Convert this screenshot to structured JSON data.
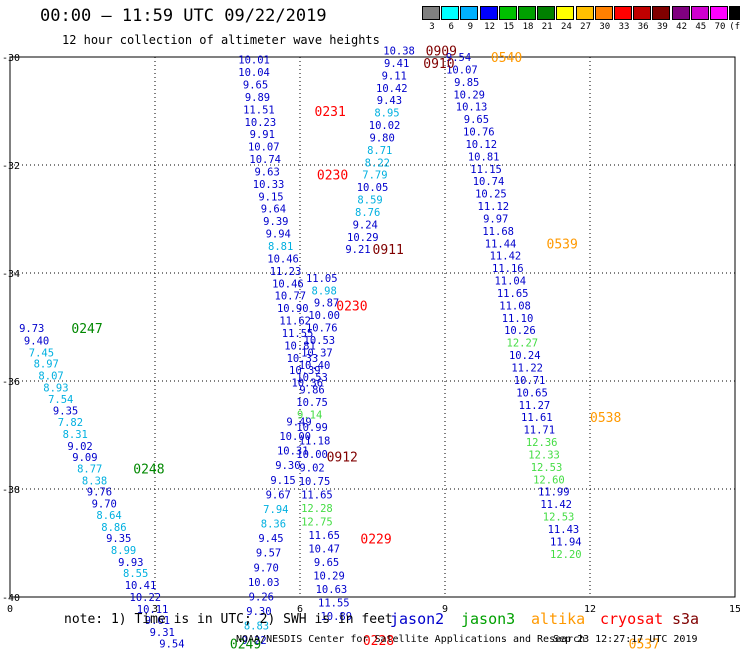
{
  "header": {
    "title": "00:00 – 11:59 UTC 09/22/2019",
    "subtitle": "12 hour collection of altimeter wave heights"
  },
  "color_scale": {
    "labels": [
      "3",
      "6",
      "9",
      "12",
      "15",
      "18",
      "21",
      "24",
      "27",
      "30",
      "33",
      "36",
      "39",
      "42",
      "45",
      "70",
      "(ft)"
    ],
    "colors": [
      "#808080",
      "#00ffff",
      "#00b0ff",
      "#0000ff",
      "#00c000",
      "#00a000",
      "#008000",
      "#ffff00",
      "#ffc000",
      "#ff8000",
      "#ff0000",
      "#c00000",
      "#800000",
      "#800080",
      "#d000d0",
      "#ff00ff",
      "#000000"
    ]
  },
  "footer": {
    "note": "note: 1) Time is in UTC; 2) SWH is in feet",
    "satellites": [
      {
        "name": "jason2",
        "color": "#0000cc"
      },
      {
        "name": "jason3",
        "color": "#00a000"
      },
      {
        "name": "altika",
        "color": "#ff9900"
      },
      {
        "name": "cryosat",
        "color": "#ff0000"
      },
      {
        "name": "s3a",
        "color": "#800000"
      }
    ],
    "credit": "NOAA/NESDIS Center for Satellite Applications and Research",
    "timestamp": "Sep 23 12:27:17 UTC 2019"
  },
  "chart_data": {
    "type": "scatter",
    "xlim": [
      0,
      15
    ],
    "ylim": [
      -40,
      -30
    ],
    "x_ticks": [
      0,
      3,
      6,
      9,
      12,
      15
    ],
    "y_ticks": [
      -30,
      -32,
      -34,
      -36,
      -38,
      -40
    ],
    "grid": true,
    "colors": {
      "b": "#0000cc",
      "c": "#00b0e0",
      "g": "#44dd44",
      "G": "#008800",
      "r": "#ff0000",
      "o": "#ff9900",
      "m": "#800000"
    },
    "points": [
      [
        0.45,
        -35.02,
        "9.73",
        "b"
      ],
      [
        0.55,
        -35.25,
        "9.40",
        "b"
      ],
      [
        0.65,
        -35.47,
        "7.45",
        "c"
      ],
      [
        0.75,
        -35.68,
        "8.97",
        "c"
      ],
      [
        0.85,
        -35.9,
        "8.07",
        "c"
      ],
      [
        0.95,
        -36.12,
        "8.93",
        "c"
      ],
      [
        1.05,
        -36.33,
        "7.54",
        "c"
      ],
      [
        1.15,
        -36.55,
        "9.35",
        "b"
      ],
      [
        1.25,
        -36.76,
        "7.82",
        "c"
      ],
      [
        1.35,
        -36.98,
        "8.31",
        "c"
      ],
      [
        1.45,
        -37.2,
        "9.02",
        "b"
      ],
      [
        1.55,
        -37.41,
        "9.09",
        "b"
      ],
      [
        1.65,
        -37.62,
        "8.77",
        "c"
      ],
      [
        1.75,
        -37.84,
        "8.38",
        "c"
      ],
      [
        1.85,
        -38.05,
        "9.76",
        "b"
      ],
      [
        1.95,
        -38.27,
        "9.70",
        "b"
      ],
      [
        2.05,
        -38.48,
        "8.64",
        "c"
      ],
      [
        2.15,
        -38.7,
        "8.86",
        "c"
      ],
      [
        2.25,
        -38.91,
        "9.35",
        "b"
      ],
      [
        2.35,
        -39.13,
        "8.99",
        "c"
      ],
      [
        2.5,
        -39.35,
        "9.93",
        "b"
      ],
      [
        2.6,
        -39.56,
        "8.55",
        "c"
      ],
      [
        2.7,
        -39.78,
        "10.41",
        "b"
      ],
      [
        2.8,
        -40.0,
        "10.22",
        "b"
      ],
      [
        2.95,
        -40.22,
        "10.11",
        "b"
      ],
      [
        3.05,
        -40.43,
        "9.61",
        "b"
      ],
      [
        3.15,
        -40.65,
        "9.31",
        "b"
      ],
      [
        3.35,
        -40.86,
        "9.54",
        "b"
      ],
      [
        5.05,
        -40.8,
        "9.22",
        "b"
      ],
      [
        5.1,
        -40.53,
        "8.83",
        "c"
      ],
      [
        5.15,
        -40.26,
        "9.30",
        "b"
      ],
      [
        5.2,
        -39.99,
        "9.26",
        "b"
      ],
      [
        5.25,
        -39.72,
        "10.03",
        "b"
      ],
      [
        5.3,
        -39.45,
        "9.70",
        "b"
      ],
      [
        5.35,
        -39.18,
        "9.57",
        "b"
      ],
      [
        5.4,
        -38.91,
        "9.45",
        "b"
      ],
      [
        5.45,
        -38.64,
        "8.36",
        "c"
      ],
      [
        5.5,
        -38.37,
        "7.94",
        "c"
      ],
      [
        5.55,
        -38.1,
        "9.67",
        "b"
      ],
      [
        5.65,
        -37.83,
        "9.15",
        "b"
      ],
      [
        5.75,
        -37.56,
        "9.30",
        "b"
      ],
      [
        5.85,
        -37.29,
        "10.31",
        "b"
      ],
      [
        5.9,
        -37.02,
        "10.00",
        "b"
      ],
      [
        5.98,
        -36.75,
        "9.49",
        "b"
      ],
      [
        5.05,
        -30.05,
        "10.01",
        "b"
      ],
      [
        5.05,
        -30.28,
        "10.04",
        "b"
      ],
      [
        5.08,
        -30.51,
        "9.65",
        "b"
      ],
      [
        5.12,
        -30.74,
        "9.89",
        "b"
      ],
      [
        5.15,
        -30.97,
        "11.51",
        "b"
      ],
      [
        5.18,
        -31.2,
        "10.23",
        "b"
      ],
      [
        5.22,
        -31.43,
        "9.91",
        "b"
      ],
      [
        5.25,
        -31.66,
        "10.07",
        "b"
      ],
      [
        5.28,
        -31.89,
        "10.74",
        "b"
      ],
      [
        5.32,
        -32.12,
        "9.63",
        "b"
      ],
      [
        5.35,
        -32.35,
        "10.33",
        "b"
      ],
      [
        5.4,
        -32.58,
        "9.15",
        "b"
      ],
      [
        5.45,
        -32.81,
        "9.64",
        "b"
      ],
      [
        5.5,
        -33.04,
        "9.39",
        "b"
      ],
      [
        5.55,
        -33.27,
        "9.94",
        "b"
      ],
      [
        5.6,
        -33.5,
        "8.81",
        "c"
      ],
      [
        5.65,
        -33.73,
        "10.46",
        "b"
      ],
      [
        5.7,
        -33.96,
        "11.23",
        "b"
      ],
      [
        5.75,
        -34.19,
        "10.46",
        "b"
      ],
      [
        5.8,
        -34.42,
        "10.77",
        "b"
      ],
      [
        5.85,
        -34.65,
        "10.90",
        "b"
      ],
      [
        5.9,
        -34.88,
        "11.62",
        "b"
      ],
      [
        5.95,
        -35.11,
        "11.55",
        "b"
      ],
      [
        6.0,
        -35.34,
        "10.81",
        "b"
      ],
      [
        6.05,
        -35.57,
        "10.33",
        "b"
      ],
      [
        6.1,
        -35.8,
        "10.39",
        "b"
      ],
      [
        6.15,
        -36.03,
        "10.36",
        "b"
      ],
      [
        6.45,
        -34.09,
        "11.05",
        "b"
      ],
      [
        6.5,
        -34.32,
        "8.98",
        "c"
      ],
      [
        6.55,
        -34.55,
        "9.87",
        "b"
      ],
      [
        6.5,
        -34.78,
        "10.00",
        "b"
      ],
      [
        6.45,
        -35.01,
        "10.76",
        "b"
      ],
      [
        6.4,
        -35.24,
        "10.53",
        "b"
      ],
      [
        6.35,
        -35.47,
        "10.37",
        "b"
      ],
      [
        6.3,
        -35.7,
        "10.40",
        "b"
      ],
      [
        6.25,
        -35.93,
        "10.53",
        "b"
      ],
      [
        6.25,
        -36.16,
        "9.86",
        "b"
      ],
      [
        6.25,
        -36.39,
        "10.75",
        "b"
      ],
      [
        6.2,
        -36.62,
        "9.14",
        "g"
      ],
      [
        6.25,
        -36.85,
        "10.99",
        "b"
      ],
      [
        6.3,
        -37.1,
        "11.18",
        "b"
      ],
      [
        6.25,
        -37.35,
        "10.00",
        "b"
      ],
      [
        6.25,
        -37.6,
        "9.02",
        "b"
      ],
      [
        6.3,
        -37.85,
        "10.75",
        "b"
      ],
      [
        6.35,
        -38.1,
        "11.65",
        "b"
      ],
      [
        6.35,
        -38.35,
        "12.28",
        "g"
      ],
      [
        6.35,
        -38.6,
        "12.75",
        "g"
      ],
      [
        6.5,
        -38.85,
        "11.65",
        "b"
      ],
      [
        6.5,
        -39.1,
        "10.47",
        "b"
      ],
      [
        6.55,
        -39.35,
        "9.65",
        "b"
      ],
      [
        6.6,
        -39.6,
        "10.29",
        "b"
      ],
      [
        6.65,
        -39.85,
        "10.63",
        "b"
      ],
      [
        6.7,
        -40.1,
        "11.55",
        "b"
      ],
      [
        6.75,
        -40.35,
        "10.89",
        "b"
      ],
      [
        8.05,
        -29.88,
        "10.38",
        "b"
      ],
      [
        8.0,
        -30.11,
        "9.41",
        "b"
      ],
      [
        7.95,
        -30.34,
        "9.11",
        "b"
      ],
      [
        7.9,
        -30.57,
        "10.42",
        "b"
      ],
      [
        7.85,
        -30.8,
        "9.43",
        "b"
      ],
      [
        7.8,
        -31.03,
        "8.95",
        "c"
      ],
      [
        7.75,
        -31.26,
        "10.02",
        "b"
      ],
      [
        7.7,
        -31.49,
        "9.80",
        "b"
      ],
      [
        7.65,
        -31.72,
        "8.71",
        "c"
      ],
      [
        7.6,
        -31.95,
        "8.22",
        "c"
      ],
      [
        7.55,
        -32.18,
        "7.79",
        "c"
      ],
      [
        7.5,
        -32.41,
        "10.05",
        "b"
      ],
      [
        7.45,
        -32.64,
        "8.59",
        "c"
      ],
      [
        7.4,
        -32.87,
        "8.76",
        "c"
      ],
      [
        7.35,
        -33.1,
        "9.24",
        "b"
      ],
      [
        7.3,
        -33.33,
        "10.29",
        "b"
      ],
      [
        7.2,
        -33.56,
        "9.21",
        "b"
      ],
      [
        9.28,
        -30.0,
        "9.54",
        "b"
      ],
      [
        9.35,
        -30.23,
        "10.07",
        "b"
      ],
      [
        9.45,
        -30.46,
        "9.85",
        "b"
      ],
      [
        9.5,
        -30.69,
        "10.29",
        "b"
      ],
      [
        9.55,
        -30.92,
        "10.13",
        "b"
      ],
      [
        9.65,
        -31.15,
        "9.65",
        "b"
      ],
      [
        9.7,
        -31.38,
        "10.76",
        "b"
      ],
      [
        9.75,
        -31.61,
        "10.12",
        "b"
      ],
      [
        9.8,
        -31.84,
        "10.81",
        "b"
      ],
      [
        9.85,
        -32.07,
        "11.15",
        "b"
      ],
      [
        9.9,
        -32.3,
        "10.74",
        "b"
      ],
      [
        9.95,
        -32.53,
        "10.25",
        "b"
      ],
      [
        10.0,
        -32.76,
        "11.12",
        "b"
      ],
      [
        10.05,
        -32.99,
        "9.97",
        "b"
      ],
      [
        10.1,
        -33.22,
        "11.68",
        "b"
      ],
      [
        10.15,
        -33.45,
        "11.44",
        "b"
      ],
      [
        10.25,
        -33.68,
        "11.42",
        "b"
      ],
      [
        10.3,
        -33.91,
        "11.16",
        "b"
      ],
      [
        10.35,
        -34.14,
        "11.04",
        "b"
      ],
      [
        10.4,
        -34.37,
        "11.65",
        "b"
      ],
      [
        10.45,
        -34.6,
        "11.08",
        "b"
      ],
      [
        10.5,
        -34.83,
        "11.10",
        "b"
      ],
      [
        10.55,
        -35.06,
        "10.26",
        "b"
      ],
      [
        10.6,
        -35.29,
        "12.27",
        "g"
      ],
      [
        10.65,
        -35.52,
        "10.24",
        "b"
      ],
      [
        10.7,
        -35.75,
        "11.22",
        "b"
      ],
      [
        10.75,
        -35.98,
        "10.71",
        "b"
      ],
      [
        10.8,
        -36.21,
        "10.65",
        "b"
      ],
      [
        10.85,
        -36.44,
        "11.27",
        "b"
      ],
      [
        10.9,
        -36.67,
        "11.61",
        "b"
      ],
      [
        10.95,
        -36.9,
        "11.71",
        "b"
      ],
      [
        11.0,
        -37.13,
        "12.36",
        "g"
      ],
      [
        11.05,
        -37.36,
        "12.33",
        "g"
      ],
      [
        11.1,
        -37.59,
        "12.53",
        "g"
      ],
      [
        11.15,
        -37.82,
        "12.60",
        "g"
      ],
      [
        11.25,
        -38.05,
        "11.99",
        "b"
      ],
      [
        11.3,
        -38.28,
        "11.42",
        "b"
      ],
      [
        11.35,
        -38.51,
        "12.53",
        "g"
      ],
      [
        11.45,
        -38.74,
        "11.43",
        "b"
      ],
      [
        11.5,
        -38.97,
        "11.94",
        "b"
      ],
      [
        11.5,
        -39.2,
        "12.20",
        "g"
      ]
    ],
    "tags": [
      [
        1.27,
        -35.02,
        "0247",
        "G"
      ],
      [
        2.55,
        -37.62,
        "0248",
        "G"
      ],
      [
        4.55,
        -40.86,
        "0249",
        "G"
      ],
      [
        6.3,
        -31.0,
        "0231",
        "r"
      ],
      [
        6.35,
        -32.18,
        "0230",
        "r"
      ],
      [
        6.75,
        -34.6,
        "0230",
        "r"
      ],
      [
        6.55,
        -37.4,
        "0912",
        "m"
      ],
      [
        7.25,
        -38.92,
        "0229",
        "r"
      ],
      [
        7.3,
        -40.8,
        "0228",
        "r"
      ],
      [
        7.5,
        -33.56,
        "0911",
        "m"
      ],
      [
        8.6,
        -29.88,
        "0909",
        "m"
      ],
      [
        8.55,
        -30.11,
        "0910",
        "m"
      ],
      [
        9.95,
        -30.0,
        "0540",
        "o"
      ],
      [
        11.1,
        -33.45,
        "0539",
        "o"
      ],
      [
        12.0,
        -36.67,
        "0538",
        "o"
      ],
      [
        12.8,
        -40.86,
        "0537",
        "o"
      ]
    ]
  }
}
